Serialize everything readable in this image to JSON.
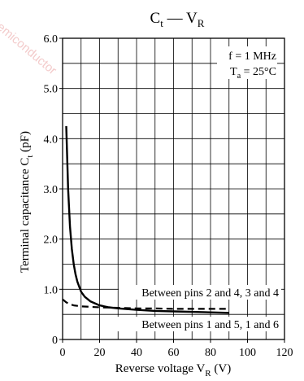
{
  "chart_data": {
    "type": "line",
    "title": {
      "main": "C",
      "main_sub": "t",
      "dash": " — ",
      "second": "V",
      "second_sub": "R"
    },
    "xlabel": {
      "text": "Reverse voltage  V",
      "sub": "R",
      "unit": "  (V)"
    },
    "ylabel": {
      "text": "Terminal capacitance  C",
      "sub": "t",
      "unit": "  (pF)"
    },
    "xlim": [
      0,
      120
    ],
    "ylim": [
      0,
      6.0
    ],
    "x_ticks": [
      0,
      20,
      40,
      60,
      80,
      100,
      120
    ],
    "y_ticks": [
      {
        "v": 0,
        "label": "0"
      },
      {
        "v": 1.0,
        "label": "1.0"
      },
      {
        "v": 2.0,
        "label": "2.0"
      },
      {
        "v": 3.0,
        "label": "3.0"
      },
      {
        "v": 4.0,
        "label": "4.0"
      },
      {
        "v": 5.0,
        "label": "5.0"
      },
      {
        "v": 6.0,
        "label": "6.0"
      }
    ],
    "grid": true,
    "grid_step_x": 10,
    "grid_step_y": 0.5,
    "conditions": [
      {
        "text": "f = 1 MHz",
        "sub": ""
      },
      {
        "text": "T",
        "sub": "a",
        "after": " = 25°C"
      }
    ],
    "series": [
      {
        "label": "Between pins 2 and 4, 3 and 4",
        "style": "dashed",
        "x": [
          0,
          2,
          4,
          6,
          8,
          10,
          15,
          20,
          30,
          40,
          50,
          60,
          70,
          80,
          90
        ],
        "y": [
          0.8,
          0.74,
          0.7,
          0.68,
          0.67,
          0.66,
          0.65,
          0.64,
          0.63,
          0.62,
          0.62,
          0.61,
          0.61,
          0.61,
          0.61
        ]
      },
      {
        "label": "Between pins 1 and 5, 1 and 6",
        "style": "solid",
        "x": [
          2,
          3,
          4,
          5,
          6,
          7,
          8,
          10,
          12,
          15,
          20,
          25,
          30,
          40,
          50,
          60,
          70,
          80,
          90
        ],
        "y": [
          4.25,
          3.0,
          2.25,
          1.8,
          1.5,
          1.3,
          1.15,
          0.95,
          0.85,
          0.76,
          0.68,
          0.64,
          0.62,
          0.59,
          0.57,
          0.56,
          0.55,
          0.54,
          0.53
        ]
      }
    ]
  },
  "watermark": "Semiconductor"
}
